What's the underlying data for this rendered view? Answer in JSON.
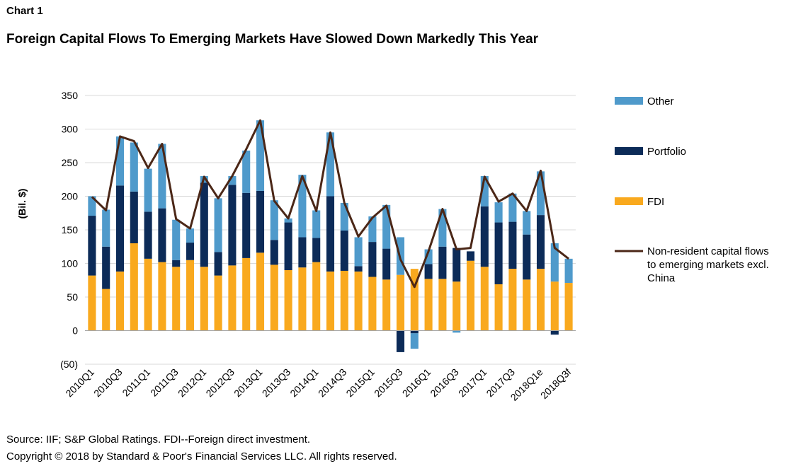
{
  "header": {
    "label": "Chart 1",
    "title": "Foreign Capital Flows To Emerging Markets Have Slowed Down Markedly This Year"
  },
  "footer": {
    "source": "Source: IIF; S&P Global Ratings. FDI--Foreign direct investment.",
    "copyright": "Copyright © 2018 by Standard & Poor's Financial Services LLC. All rights reserved."
  },
  "chart_data": {
    "type": "bar",
    "stacked": true,
    "ylabel": "(Bil. $)",
    "ylim": [
      -50,
      350
    ],
    "yticks": [
      -50,
      0,
      50,
      100,
      150,
      200,
      250,
      300,
      350
    ],
    "ytick_labels": [
      "(50)",
      "0",
      "50",
      "100",
      "150",
      "200",
      "250",
      "300",
      "350"
    ],
    "grid": true,
    "legend_position": "right",
    "categories": [
      "2010Q1",
      "2010Q2",
      "2010Q3",
      "2010Q4",
      "2011Q1",
      "2011Q2",
      "2011Q3",
      "2011Q4",
      "2012Q1",
      "2012Q2",
      "2012Q3",
      "2012Q4",
      "2013Q1",
      "2013Q2",
      "2013Q3",
      "2013Q4",
      "2014Q1",
      "2014Q2",
      "2014Q3",
      "2014Q4",
      "2015Q1",
      "2015Q2",
      "2015Q3",
      "2015Q4",
      "2016Q1",
      "2016Q2",
      "2016Q3",
      "2016Q4",
      "2017Q1",
      "2017Q2",
      "2017Q3",
      "2017Q4",
      "2018Q1e",
      "2018Q2",
      "2018Q3f"
    ],
    "xtick_labels": [
      "2010Q1",
      "",
      "2010Q3",
      "",
      "2011Q1",
      "",
      "2011Q3",
      "",
      "2012Q1",
      "",
      "2012Q3",
      "",
      "2013Q1",
      "",
      "2013Q3",
      "",
      "2014Q1",
      "",
      "2014Q3",
      "",
      "2015Q1",
      "",
      "2015Q3",
      "",
      "2016Q1",
      "",
      "2016Q3",
      "",
      "2017Q1",
      "",
      "2017Q3",
      "",
      "2018Q1e",
      "",
      "2018Q3f"
    ],
    "series": [
      {
        "name": "FDI",
        "kind": "bar",
        "color": "#F9A91E",
        "values": [
          82,
          62,
          88,
          130,
          107,
          102,
          95,
          105,
          95,
          82,
          97,
          108,
          116,
          98,
          90,
          94,
          102,
          88,
          89,
          88,
          80,
          76,
          83,
          92,
          77,
          77,
          73,
          104,
          95,
          69,
          92,
          76,
          92,
          73,
          71
        ]
      },
      {
        "name": "Portfolio",
        "kind": "bar",
        "color": "#0C2B58",
        "values": [
          89,
          63,
          128,
          77,
          70,
          80,
          10,
          26,
          125,
          35,
          120,
          97,
          92,
          37,
          71,
          45,
          36,
          112,
          60,
          8,
          52,
          46,
          -32,
          -4,
          22,
          48,
          50,
          14,
          90,
          92,
          70,
          67,
          80,
          -6,
          0
        ]
      },
      {
        "name": "Other",
        "kind": "bar",
        "color": "#4F9ACB",
        "values": [
          29,
          55,
          73,
          73,
          64,
          96,
          60,
          21,
          10,
          80,
          13,
          63,
          105,
          59,
          6,
          93,
          41,
          95,
          41,
          43,
          38,
          65,
          56,
          -23,
          22,
          56,
          -3,
          0,
          45,
          30,
          42,
          35,
          65,
          57,
          36
        ]
      },
      {
        "name": "Non-resident capital flows to emerging markets excl. China",
        "kind": "line",
        "color": "#4B2717",
        "values": [
          199,
          179,
          289,
          282,
          242,
          278,
          166,
          152,
          229,
          197,
          230,
          270,
          313,
          193,
          167,
          230,
          178,
          295,
          190,
          140,
          168,
          186,
          106,
          65,
          118,
          181,
          121,
          123,
          229,
          192,
          204,
          178,
          238,
          123,
          107
        ]
      }
    ],
    "legend": [
      "Other",
      "Portfolio",
      "FDI",
      "Non-resident capital flows to emerging markets excl. China"
    ],
    "legend_lines": [
      [
        "Other"
      ],
      [
        "Portfolio"
      ],
      [
        "FDI"
      ],
      [
        "Non-resident capital flows",
        "to emerging markets excl.",
        "China"
      ]
    ]
  }
}
